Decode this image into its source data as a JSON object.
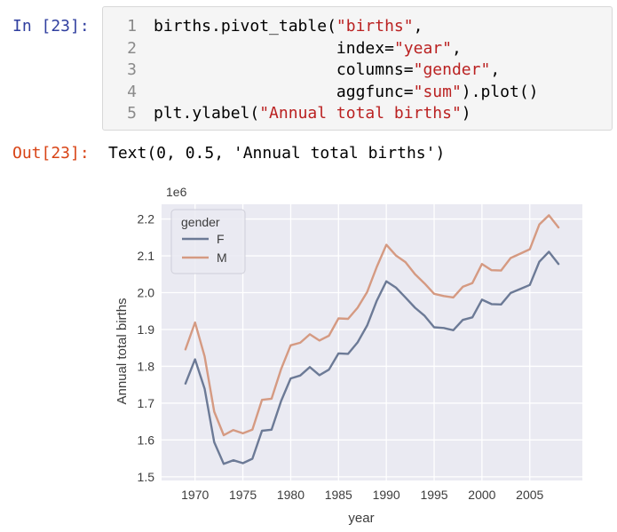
{
  "notebook": {
    "in_prompt": "In [23]:",
    "out_prompt": "Out[23]:",
    "code_lines": [
      {
        "num": "1",
        "parts": [
          {
            "t": "births.pivot_table(",
            "k": "p"
          },
          {
            "t": "\"births\"",
            "k": "s"
          },
          {
            "t": ",",
            "k": "p"
          }
        ]
      },
      {
        "num": "2",
        "parts": [
          {
            "t": "                   index=",
            "k": "p"
          },
          {
            "t": "\"year\"",
            "k": "s"
          },
          {
            "t": ",",
            "k": "p"
          }
        ]
      },
      {
        "num": "3",
        "parts": [
          {
            "t": "                   columns=",
            "k": "p"
          },
          {
            "t": "\"gender\"",
            "k": "s"
          },
          {
            "t": ",",
            "k": "p"
          }
        ]
      },
      {
        "num": "4",
        "parts": [
          {
            "t": "                   aggfunc=",
            "k": "p"
          },
          {
            "t": "\"sum\"",
            "k": "s"
          },
          {
            "t": ").plot()",
            "k": "p"
          }
        ]
      },
      {
        "num": "5",
        "parts": [
          {
            "t": "plt.ylabel(",
            "k": "p"
          },
          {
            "t": "\"Annual total births\"",
            "k": "s"
          },
          {
            "t": ")",
            "k": "p"
          }
        ]
      }
    ],
    "output_text": "Text(0, 0.5, 'Annual total births')"
  },
  "chart_data": {
    "type": "line",
    "title": "",
    "xlabel": "year",
    "ylabel": "Annual total births",
    "offset_label": "1e6",
    "xlim": [
      1966.5,
      2010.5
    ],
    "ylim": [
      1.49,
      2.24
    ],
    "xticks": [
      1970,
      1975,
      1980,
      1985,
      1990,
      1995,
      2000,
      2005
    ],
    "yticks": [
      1.5,
      1.6,
      1.7,
      1.8,
      1.9,
      2.0,
      2.1,
      2.2
    ],
    "ytick_labels": [
      "1.5",
      "1.6",
      "1.7",
      "1.8",
      "1.9",
      "2.0",
      "2.1",
      "2.2"
    ],
    "grid": true,
    "background": "#eaeaf2",
    "legend": {
      "title": "gender",
      "placement": "top-left"
    },
    "x": [
      1969,
      1970,
      1971,
      1972,
      1973,
      1974,
      1975,
      1976,
      1977,
      1978,
      1979,
      1980,
      1981,
      1982,
      1983,
      1984,
      1985,
      1986,
      1987,
      1988,
      1989,
      1990,
      1991,
      1992,
      1993,
      1994,
      1995,
      1996,
      1997,
      1998,
      1999,
      2000,
      2001,
      2002,
      2003,
      2004,
      2005,
      2006,
      2007,
      2008
    ],
    "series": [
      {
        "name": "F",
        "color": "#6c7a96",
        "values": [
          1.753,
          1.819,
          1.739,
          1.594,
          1.535,
          1.545,
          1.537,
          1.549,
          1.625,
          1.628,
          1.706,
          1.767,
          1.775,
          1.798,
          1.776,
          1.791,
          1.835,
          1.834,
          1.865,
          1.911,
          1.978,
          2.031,
          2.014,
          1.987,
          1.959,
          1.937,
          1.906,
          1.904,
          1.898,
          1.926,
          1.933,
          1.981,
          1.969,
          1.968,
          1.999,
          2.01,
          2.021,
          2.084,
          2.111,
          2.078
        ]
      },
      {
        "name": "M",
        "color": "#d59a82",
        "values": [
          1.846,
          1.919,
          1.827,
          1.677,
          1.613,
          1.627,
          1.618,
          1.628,
          1.709,
          1.712,
          1.793,
          1.857,
          1.864,
          1.887,
          1.87,
          1.883,
          1.93,
          1.929,
          1.959,
          2.002,
          2.07,
          2.13,
          2.101,
          2.083,
          2.05,
          2.025,
          1.997,
          1.991,
          1.987,
          2.016,
          2.026,
          2.078,
          2.061,
          2.06,
          2.094,
          2.106,
          2.118,
          2.185,
          2.21,
          2.177
        ]
      }
    ]
  }
}
